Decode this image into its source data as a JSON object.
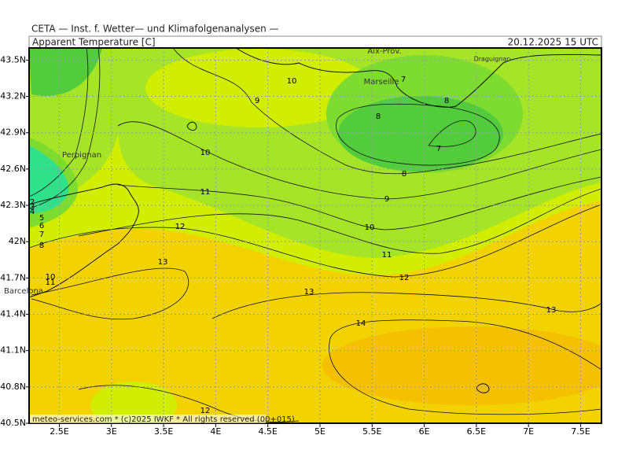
{
  "header": "CETA — Inst. f. Wetter— und Klimafolgenanalysen —",
  "panel": {
    "title": "Apparent Temperature [C]",
    "valid_time": "20.12.2025 15 UTC"
  },
  "axes": {
    "lon_range": [
      2.21,
      7.7
    ],
    "lat_range": [
      40.5,
      43.6
    ],
    "lon_ticks": [
      {
        "value": 2.5,
        "label": "2.5E"
      },
      {
        "value": 3,
        "label": "3E"
      },
      {
        "value": 3.5,
        "label": "3.5E"
      },
      {
        "value": 4,
        "label": "4E"
      },
      {
        "value": 4.5,
        "label": "4.5E"
      },
      {
        "value": 5,
        "label": "5E"
      },
      {
        "value": 5.5,
        "label": "5.5E"
      },
      {
        "value": 6,
        "label": "6E"
      },
      {
        "value": 6.5,
        "label": "6.5E"
      },
      {
        "value": 7,
        "label": "7E"
      },
      {
        "value": 7.5,
        "label": "7.5E"
      }
    ],
    "lat_ticks": [
      {
        "value": 43.5,
        "label": "43.5N"
      },
      {
        "value": 43.2,
        "label": "43.2N"
      },
      {
        "value": 42.9,
        "label": "42.9N"
      },
      {
        "value": 42.6,
        "label": "42.6N"
      },
      {
        "value": 42.3,
        "label": "42.3N"
      },
      {
        "value": 42,
        "label": "42N"
      },
      {
        "value": 41.7,
        "label": "41.7N"
      },
      {
        "value": 41.4,
        "label": "41.4N"
      },
      {
        "value": 41.1,
        "label": "41.1N"
      },
      {
        "value": 40.8,
        "label": "40.8N"
      },
      {
        "value": 40.5,
        "label": "40.5N"
      }
    ]
  },
  "places": [
    "Aix-Prov.",
    "Marseille",
    "Draguignan",
    "Perpignan",
    "Barcelona"
  ],
  "contour_labels": [
    "10",
    "9",
    "7",
    "8",
    "8",
    "7",
    "8",
    "10",
    "11",
    "9",
    "12",
    "10",
    "11",
    "13",
    "12",
    "13",
    "13",
    "14",
    "12",
    "2",
    "3",
    "4",
    "5",
    "6",
    "7",
    "8",
    "10",
    "11"
  ],
  "footer": "meteo-services.com * (c)2025 IWKF * All rights reserved (00+015)"
}
